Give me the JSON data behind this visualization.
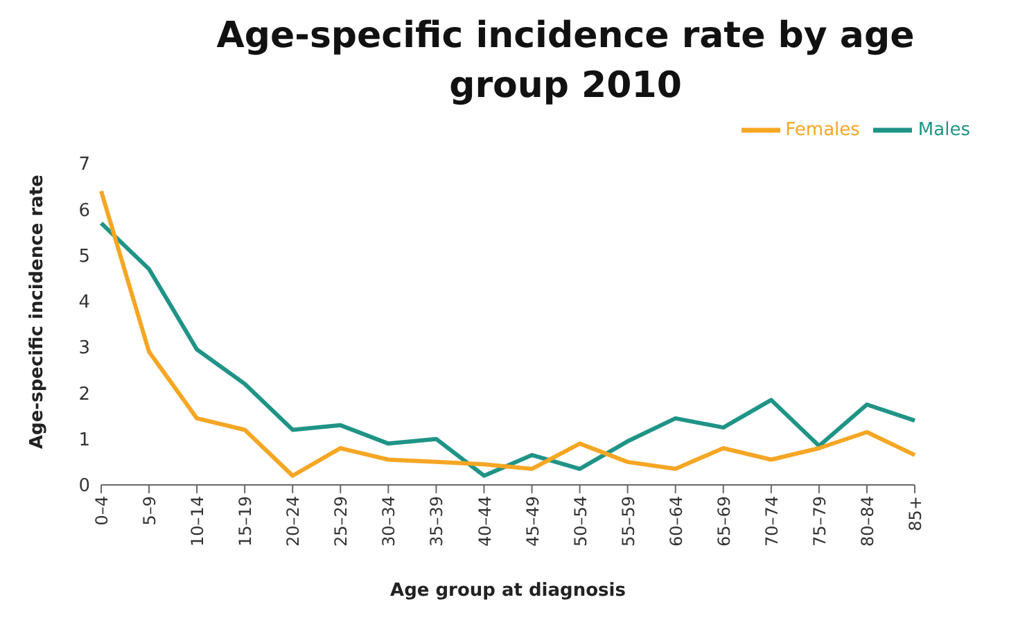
{
  "chart_data": {
    "type": "line",
    "title": "Age-specific incidence rate by age group 2010",
    "xlabel": "Age group at diagnosis",
    "ylabel": "Age-specific incidence rate",
    "categories": [
      "0–4",
      "5–9",
      "10–14",
      "15–19",
      "20–24",
      "25–29",
      "30–34",
      "35–39",
      "40–44",
      "45–49",
      "50–54",
      "55–59",
      "60–64",
      "65–69",
      "70–74",
      "75–79",
      "80–84",
      "85+"
    ],
    "series": [
      {
        "name": "Males",
        "color": "#1f9486",
        "values": [
          5.7,
          4.7,
          2.95,
          2.2,
          1.2,
          1.3,
          0.9,
          1.0,
          0.2,
          0.65,
          0.35,
          0.95,
          1.45,
          1.25,
          1.85,
          0.85,
          1.75,
          1.4
        ]
      },
      {
        "name": "Females",
        "color": "#f5a623",
        "values": [
          6.4,
          2.9,
          1.45,
          1.2,
          0.2,
          0.8,
          0.55,
          0.5,
          0.45,
          0.35,
          0.9,
          0.5,
          0.35,
          0.8,
          0.55,
          0.8,
          1.15,
          0.65
        ]
      }
    ],
    "ylim": [
      0,
      7
    ],
    "yticks": [
      0,
      1,
      2,
      3,
      4,
      5,
      6,
      7
    ],
    "grid": false,
    "legend": "top right",
    "marker": "none",
    "line_style": "solid"
  }
}
